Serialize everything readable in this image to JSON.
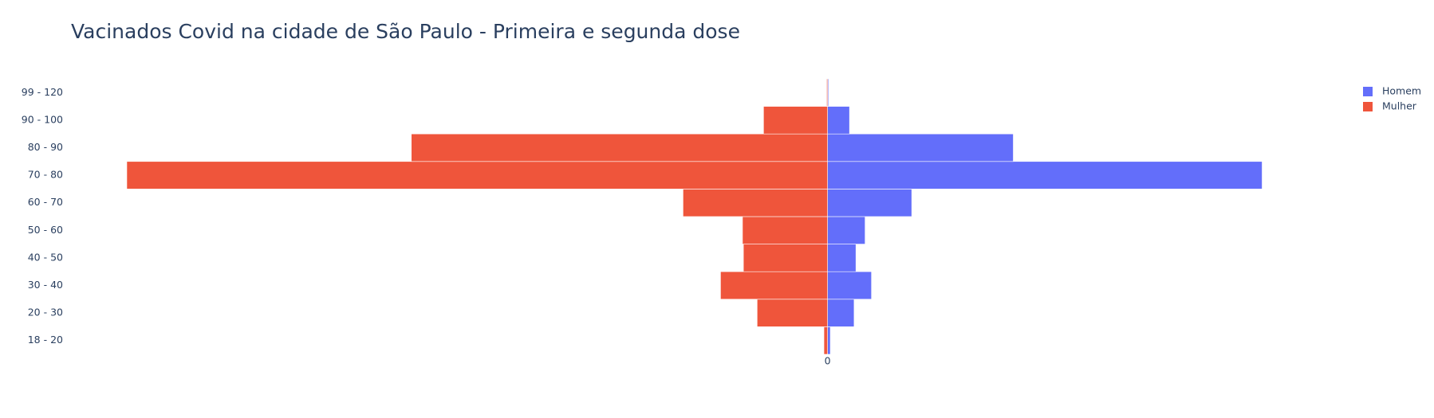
{
  "chart_data": {
    "type": "bar",
    "orientation": "horizontal",
    "barmode": "relative",
    "title": "Vacinados Covid na cidade de São Paulo - Primeira e segunda dose",
    "categories": [
      "18 - 20",
      "20 - 30",
      "30 - 40",
      "40 - 50",
      "50 - 60",
      "60 - 70",
      "70 - 80",
      "80 - 90",
      "90 - 100",
      "99 - 120"
    ],
    "series": [
      {
        "name": "Homem",
        "color": "#636efa",
        "values": [
          3,
          29,
          48,
          31,
          41,
          92,
          475,
          203,
          24,
          1
        ]
      },
      {
        "name": "Mulher",
        "color": "#ef553b",
        "values": [
          -4,
          -77,
          -117,
          -92,
          -93,
          -158,
          -766,
          -455,
          -70,
          -1
        ]
      }
    ],
    "xlim": [
      -827,
      560
    ],
    "xticks": [
      0
    ],
    "legend": "top-right"
  }
}
